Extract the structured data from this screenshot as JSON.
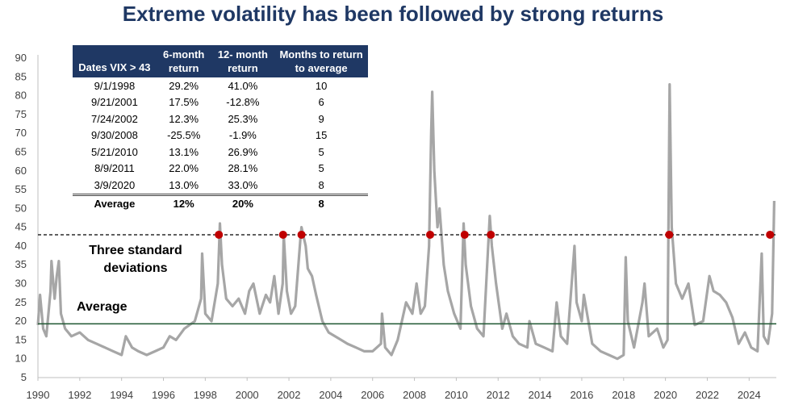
{
  "chart_data": {
    "type": "line",
    "title": "Extreme volatility has been followed by strong returns",
    "xlim": [
      1990,
      2025.3
    ],
    "ylim": [
      5,
      90
    ],
    "y_ticks": [
      5,
      10,
      15,
      20,
      25,
      30,
      35,
      40,
      45,
      50,
      55,
      60,
      65,
      70,
      75,
      80,
      85,
      90
    ],
    "x_ticks": [
      "1990",
      "1992",
      "1994",
      "1996",
      "1998",
      "2000",
      "2002",
      "2004",
      "2006",
      "2008",
      "2010",
      "2012",
      "2014",
      "2016",
      "2018",
      "2020",
      "2022",
      "2024"
    ],
    "grid": false,
    "series": [
      {
        "color": "#a6a6a6",
        "points": [
          [
            1990.0,
            19
          ],
          [
            1990.1,
            27
          ],
          [
            1990.25,
            18
          ],
          [
            1990.4,
            16
          ],
          [
            1990.6,
            28
          ],
          [
            1990.65,
            36
          ],
          [
            1990.8,
            26
          ],
          [
            1990.9,
            32
          ],
          [
            1991.0,
            36
          ],
          [
            1991.1,
            22
          ],
          [
            1991.3,
            18
          ],
          [
            1991.6,
            16
          ],
          [
            1992.0,
            17
          ],
          [
            1992.4,
            15
          ],
          [
            1992.8,
            14
          ],
          [
            1993.2,
            13
          ],
          [
            1993.6,
            12
          ],
          [
            1994.0,
            11
          ],
          [
            1994.2,
            16
          ],
          [
            1994.5,
            13
          ],
          [
            1994.8,
            12
          ],
          [
            1995.2,
            11
          ],
          [
            1995.6,
            12
          ],
          [
            1996.0,
            13
          ],
          [
            1996.3,
            16
          ],
          [
            1996.6,
            15
          ],
          [
            1997.0,
            18
          ],
          [
            1997.5,
            20
          ],
          [
            1997.8,
            26
          ],
          [
            1997.85,
            38
          ],
          [
            1998.0,
            22
          ],
          [
            1998.3,
            20
          ],
          [
            1998.6,
            30
          ],
          [
            1998.7,
            46
          ],
          [
            1998.8,
            35
          ],
          [
            1999.0,
            26
          ],
          [
            1999.3,
            24
          ],
          [
            1999.6,
            26
          ],
          [
            1999.9,
            22
          ],
          [
            2000.1,
            28
          ],
          [
            2000.3,
            30
          ],
          [
            2000.6,
            22
          ],
          [
            2000.9,
            27
          ],
          [
            2001.1,
            25
          ],
          [
            2001.3,
            32
          ],
          [
            2001.5,
            22
          ],
          [
            2001.7,
            30
          ],
          [
            2001.75,
            43
          ],
          [
            2001.9,
            28
          ],
          [
            2002.1,
            22
          ],
          [
            2002.3,
            24
          ],
          [
            2002.55,
            42
          ],
          [
            2002.6,
            45
          ],
          [
            2002.8,
            40
          ],
          [
            2002.9,
            34
          ],
          [
            2003.1,
            32
          ],
          [
            2003.3,
            27
          ],
          [
            2003.6,
            20
          ],
          [
            2003.9,
            17
          ],
          [
            2004.2,
            16
          ],
          [
            2004.5,
            15
          ],
          [
            2004.8,
            14
          ],
          [
            2005.2,
            13
          ],
          [
            2005.6,
            12
          ],
          [
            2006.0,
            12
          ],
          [
            2006.4,
            14
          ],
          [
            2006.45,
            22
          ],
          [
            2006.6,
            13
          ],
          [
            2006.9,
            11
          ],
          [
            2007.2,
            15
          ],
          [
            2007.6,
            25
          ],
          [
            2007.9,
            22
          ],
          [
            2008.1,
            30
          ],
          [
            2008.3,
            22
          ],
          [
            2008.5,
            24
          ],
          [
            2008.7,
            40
          ],
          [
            2008.8,
            70
          ],
          [
            2008.85,
            81
          ],
          [
            2008.95,
            60
          ],
          [
            2009.1,
            45
          ],
          [
            2009.2,
            50
          ],
          [
            2009.4,
            35
          ],
          [
            2009.6,
            28
          ],
          [
            2009.9,
            22
          ],
          [
            2010.2,
            18
          ],
          [
            2010.35,
            46
          ],
          [
            2010.45,
            35
          ],
          [
            2010.7,
            24
          ],
          [
            2011.0,
            18
          ],
          [
            2011.3,
            16
          ],
          [
            2011.6,
            48
          ],
          [
            2011.7,
            40
          ],
          [
            2011.9,
            30
          ],
          [
            2012.2,
            18
          ],
          [
            2012.4,
            22
          ],
          [
            2012.7,
            16
          ],
          [
            2013.0,
            14
          ],
          [
            2013.4,
            13
          ],
          [
            2013.5,
            20
          ],
          [
            2013.8,
            14
          ],
          [
            2014.2,
            13
          ],
          [
            2014.6,
            12
          ],
          [
            2014.8,
            25
          ],
          [
            2015.0,
            16
          ],
          [
            2015.3,
            14
          ],
          [
            2015.65,
            40
          ],
          [
            2015.75,
            25
          ],
          [
            2016.0,
            20
          ],
          [
            2016.1,
            27
          ],
          [
            2016.5,
            14
          ],
          [
            2016.9,
            12
          ],
          [
            2017.3,
            11
          ],
          [
            2017.7,
            10
          ],
          [
            2018.0,
            11
          ],
          [
            2018.1,
            37
          ],
          [
            2018.2,
            20
          ],
          [
            2018.5,
            13
          ],
          [
            2018.9,
            25
          ],
          [
            2019.0,
            30
          ],
          [
            2019.2,
            16
          ],
          [
            2019.6,
            18
          ],
          [
            2019.9,
            13
          ],
          [
            2020.1,
            15
          ],
          [
            2020.2,
            83
          ],
          [
            2020.3,
            45
          ],
          [
            2020.5,
            30
          ],
          [
            2020.8,
            26
          ],
          [
            2021.1,
            30
          ],
          [
            2021.4,
            19
          ],
          [
            2021.8,
            20
          ],
          [
            2022.1,
            32
          ],
          [
            2022.3,
            28
          ],
          [
            2022.6,
            27
          ],
          [
            2022.9,
            25
          ],
          [
            2023.2,
            21
          ],
          [
            2023.5,
            14
          ],
          [
            2023.8,
            17
          ],
          [
            2024.1,
            13
          ],
          [
            2024.4,
            12
          ],
          [
            2024.6,
            38
          ],
          [
            2024.7,
            16
          ],
          [
            2024.9,
            14
          ],
          [
            2025.0,
            18
          ],
          [
            2025.1,
            22
          ],
          [
            2025.2,
            52
          ]
        ]
      }
    ],
    "three_std": 43,
    "three_std_color": "#000000",
    "average": 19.3,
    "average_color": "#1e5631",
    "marker_color": "#c00000",
    "markers_x": [
      1998.65,
      2001.72,
      2002.6,
      2008.75,
      2010.4,
      2011.65,
      2020.18,
      2025.0
    ],
    "annotations": {
      "three_std_label": [
        "Three standard",
        "deviations"
      ],
      "average_label": "Average"
    },
    "table": {
      "headers": [
        [
          "Dates VIX > 43"
        ],
        [
          "6-month",
          "return"
        ],
        [
          "12- month",
          "return"
        ],
        [
          "Months to return",
          "to average"
        ]
      ],
      "rows": [
        [
          "9/1/1998",
          "29.2%",
          "41.0%",
          "10"
        ],
        [
          "9/21/2001",
          "17.5%",
          "-12.8%",
          "6"
        ],
        [
          "7/24/2002",
          "12.3%",
          "25.3%",
          "9"
        ],
        [
          "9/30/2008",
          "-25.5%",
          "-1.9%",
          "15"
        ],
        [
          "5/21/2010",
          "13.1%",
          "26.9%",
          "5"
        ],
        [
          "8/9/2011",
          "22.0%",
          "28.1%",
          "5"
        ],
        [
          "3/9/2020",
          "13.0%",
          "33.0%",
          "8"
        ]
      ],
      "footer": [
        "Average",
        "12%",
        "20%",
        "8"
      ],
      "header_color": "#1f3864"
    }
  }
}
